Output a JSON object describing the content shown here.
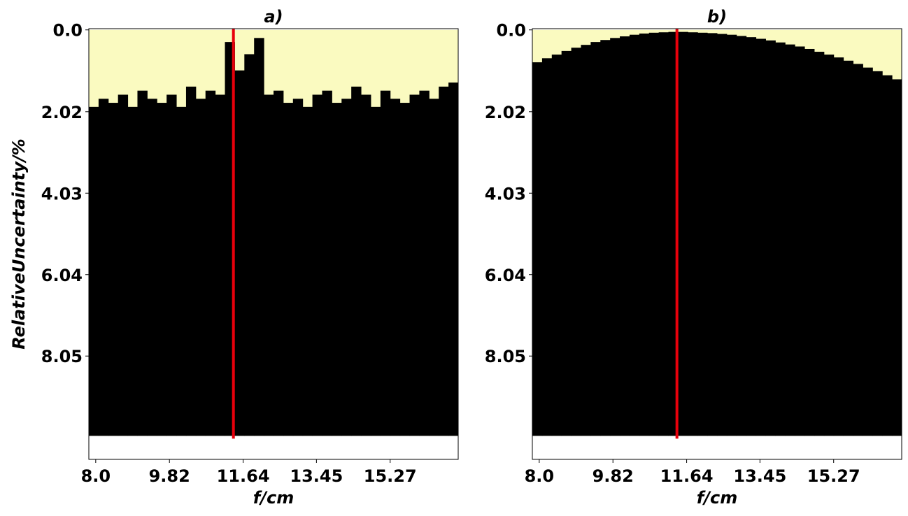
{
  "chart_data": [
    {
      "type": "binary-map",
      "title": "a)",
      "xlabel": "f/cm",
      "ylabel": "RelativeUncertainty/%",
      "x": [
        7.95,
        8.19,
        8.43,
        8.67,
        8.91,
        9.15,
        9.39,
        9.63,
        9.87,
        10.11,
        10.35,
        10.59,
        10.83,
        11.07,
        11.31,
        11.55,
        11.79,
        12.03,
        12.27,
        12.51,
        12.75,
        12.99,
        13.23,
        13.47,
        13.71,
        13.95,
        14.19,
        14.43,
        14.67,
        14.91,
        15.15,
        15.39,
        15.63,
        15.87,
        16.11,
        16.35,
        16.59,
        16.83
      ],
      "values": [
        1.9,
        1.7,
        1.8,
        1.6,
        1.9,
        1.5,
        1.7,
        1.8,
        1.6,
        1.9,
        1.4,
        1.7,
        1.5,
        1.6,
        0.3,
        1.0,
        0.6,
        0.2,
        1.6,
        1.5,
        1.8,
        1.7,
        1.9,
        1.6,
        1.5,
        1.8,
        1.7,
        1.4,
        1.6,
        1.9,
        1.5,
        1.7,
        1.8,
        1.6,
        1.5,
        1.7,
        1.4,
        1.3
      ],
      "colors": {
        "light": "#fafac0",
        "dark": "#000000"
      },
      "extent": [
        7.83,
        16.95,
        10.02,
        0
      ],
      "vline": {
        "x": 11.4,
        "color": "#e8000b"
      },
      "xlim": [
        7.83,
        16.95
      ],
      "ylim": [
        10.6,
        -0.03
      ],
      "xticks": [
        {
          "value": 8,
          "label": "8.0"
        },
        9.82,
        11.64,
        13.45,
        15.27
      ],
      "yticks": [
        {
          "value": 0,
          "label": "0.0"
        },
        2.02,
        4.03,
        6.04,
        8.05
      ]
    },
    {
      "type": "binary-map",
      "title": "b)",
      "xlabel": "f/cm",
      "x": [
        7.95,
        8.19,
        8.43,
        8.67,
        8.91,
        9.15,
        9.39,
        9.63,
        9.87,
        10.11,
        10.35,
        10.59,
        10.83,
        11.07,
        11.31,
        11.55,
        11.79,
        12.03,
        12.27,
        12.51,
        12.75,
        12.99,
        13.23,
        13.47,
        13.71,
        13.95,
        14.19,
        14.43,
        14.67,
        14.91,
        15.15,
        15.39,
        15.63,
        15.87,
        16.11,
        16.35,
        16.59,
        16.83
      ],
      "values": [
        0.8,
        0.7,
        0.61,
        0.52,
        0.44,
        0.37,
        0.3,
        0.25,
        0.2,
        0.16,
        0.12,
        0.09,
        0.07,
        0.06,
        0.05,
        0.05,
        0.06,
        0.07,
        0.08,
        0.1,
        0.12,
        0.15,
        0.18,
        0.22,
        0.26,
        0.31,
        0.36,
        0.41,
        0.47,
        0.54,
        0.61,
        0.68,
        0.76,
        0.84,
        0.93,
        1.02,
        1.12,
        1.22
      ],
      "colors": {
        "light": "#fafac0",
        "dark": "#000000"
      },
      "extent": [
        7.83,
        16.95,
        10.02,
        0
      ],
      "vline": {
        "x": 11.4,
        "color": "#e8000b"
      },
      "xlim": [
        7.83,
        16.95
      ],
      "ylim": [
        10.6,
        -0.03
      ],
      "xticks": [
        {
          "value": 8,
          "label": "8.0"
        },
        9.82,
        11.64,
        13.45,
        15.27
      ],
      "yticks": [
        {
          "value": 0,
          "label": "0.0"
        },
        2.02,
        4.03,
        6.04,
        8.05
      ]
    }
  ]
}
